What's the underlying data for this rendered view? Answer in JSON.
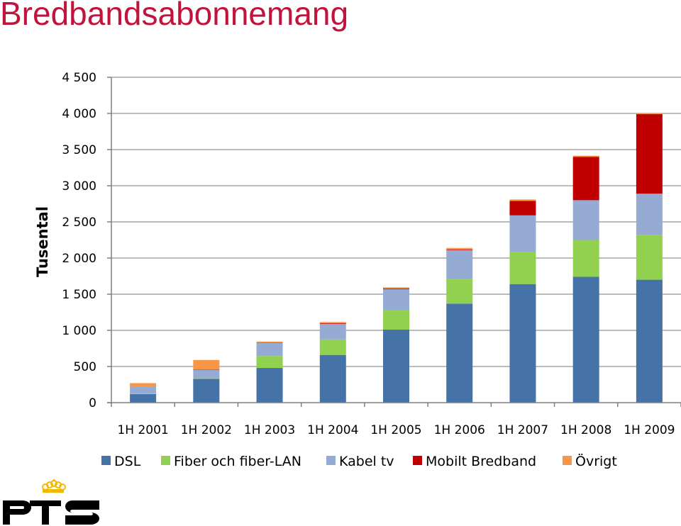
{
  "page": {
    "title": "Bredbandsabonnemang",
    "logo_text": "PTS"
  },
  "colors": {
    "title": "#c0143c",
    "grid": "#a6a6a6",
    "axis": "#7f7f7f",
    "logo": "#000000",
    "crown": "#f2b800"
  },
  "chart_data": {
    "type": "bar",
    "stacked": true,
    "ylabel": "Tusental",
    "ylim": [
      0,
      4500
    ],
    "yticks": [
      {
        "value": 0,
        "label": "0"
      },
      {
        "value": 500,
        "label": "500"
      },
      {
        "value": 1000,
        "label": "1 000"
      },
      {
        "value": 1500,
        "label": "1 500"
      },
      {
        "value": 2000,
        "label": "2 000"
      },
      {
        "value": 2500,
        "label": "2 500"
      },
      {
        "value": 3000,
        "label": "3 000"
      },
      {
        "value": 3500,
        "label": "3 500"
      },
      {
        "value": 4000,
        "label": "4 000"
      },
      {
        "value": 4500,
        "label": "4 500"
      }
    ],
    "grid": true,
    "legend_position": "bottom",
    "categories": [
      "1H 2001",
      "1H 2002",
      "1H 2003",
      "1H 2004",
      "1H 2005",
      "1H 2006",
      "1H 2007",
      "1H 2008",
      "1H 2009"
    ],
    "series": [
      {
        "name": "DSL",
        "color": "#4572a7",
        "values": [
          120,
          330,
          480,
          660,
          1010,
          1370,
          1640,
          1740,
          1700
        ]
      },
      {
        "name": "Fiber och fiber-LAN",
        "color": "#92d050",
        "values": [
          5,
          5,
          165,
          215,
          270,
          340,
          440,
          510,
          620
        ]
      },
      {
        "name": "Kabel tv",
        "color": "#95abd4",
        "values": [
          95,
          120,
          180,
          215,
          290,
          400,
          510,
          550,
          570
        ]
      },
      {
        "name": "Mobilt Bredband",
        "color": "#c00000",
        "values": [
          0,
          5,
          5,
          10,
          10,
          10,
          200,
          600,
          1100
        ]
      },
      {
        "name": "Övrigt",
        "color": "#f79646",
        "values": [
          50,
          130,
          15,
          15,
          15,
          20,
          20,
          15,
          15
        ]
      }
    ]
  }
}
